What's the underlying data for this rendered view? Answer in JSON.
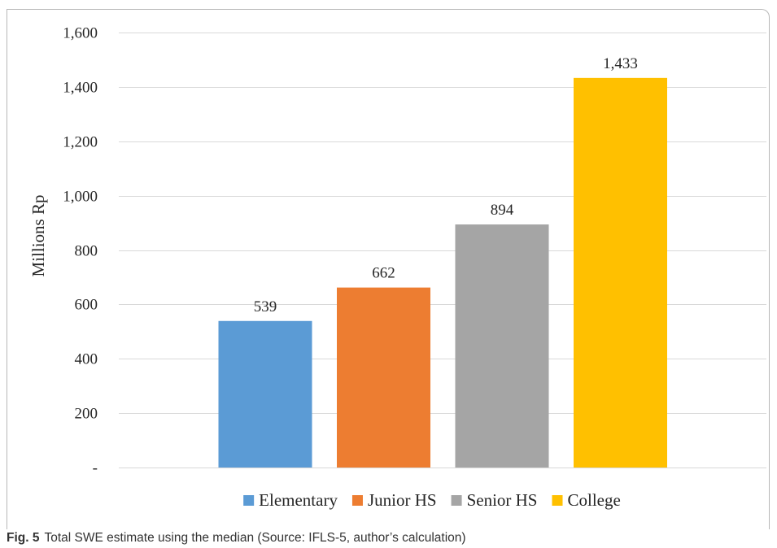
{
  "chart_data": {
    "type": "bar",
    "categories": [
      "Elementary",
      "Junior HS",
      "Senior HS",
      "College"
    ],
    "values": [
      539,
      662,
      894,
      1433
    ],
    "data_labels": [
      "539",
      "662",
      "894",
      "1,433"
    ],
    "colors": [
      "#5b9bd5",
      "#ed7d31",
      "#a5a5a5",
      "#ffc000"
    ],
    "ylabel": "Millions Rp",
    "xlabel": "",
    "ylim": [
      0,
      1600
    ],
    "yticks": [
      0,
      200,
      400,
      600,
      800,
      1000,
      1200,
      1400,
      1600
    ],
    "ytick_labels": [
      "-",
      "200",
      "400",
      "600",
      "800",
      "1,000",
      "1,200",
      "1,400",
      "1,600"
    ],
    "grid": true,
    "legend": {
      "position": "bottom",
      "entries": [
        "Elementary",
        "Junior HS",
        "Senior HS",
        "College"
      ]
    }
  },
  "caption": {
    "fig_number": "Fig. 5",
    "text": "Total SWE estimate using the median (Source: IFLS-5, author’s calculation)"
  }
}
